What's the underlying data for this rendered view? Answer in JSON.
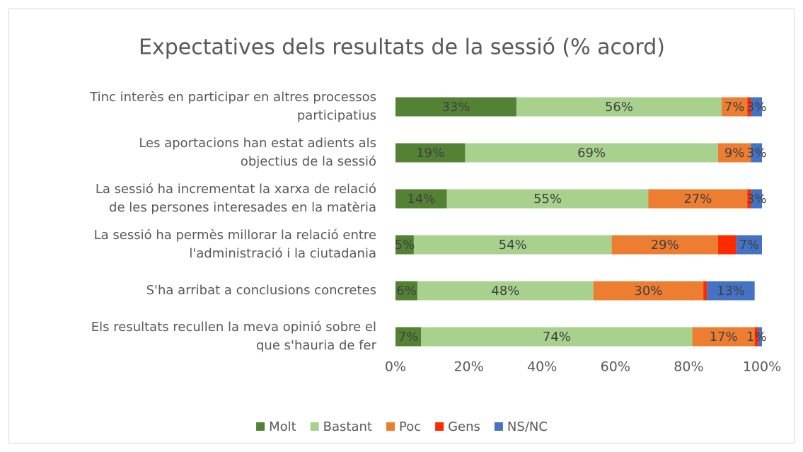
{
  "chart_data": {
    "type": "stacked-bar-horizontal",
    "title": "Expectatives dels resultats de la sessió (% acord)",
    "categories": [
      "Tinc interès en participar en altres processos participatius",
      "Les aportacions han estat adients als objectius de la sessió",
      "La sessió ha incrementat la xarxa de relació de les persones interesades en la matèria",
      "La sessió ha permès millorar la relació entre l'administració i la ciutadania",
      "S'ha arribat a conclusions concretes",
      "Els resultats recullen la meva opinió sobre el que s'hauria de fer"
    ],
    "series": [
      {
        "name": "Molt",
        "color": "#548235",
        "values": [
          33,
          19,
          14,
          5,
          6,
          7
        ],
        "value_labels": [
          "33%",
          "19%",
          "14%",
          "5%",
          "6%",
          "7%"
        ]
      },
      {
        "name": "Bastant",
        "color": "#a9d18e",
        "values": [
          56,
          69,
          55,
          54,
          48,
          74
        ],
        "value_labels": [
          "56%",
          "69%",
          "55%",
          "54%",
          "48%",
          "74%"
        ]
      },
      {
        "name": "Poc",
        "color": "#ed7d31",
        "values": [
          7,
          9,
          27,
          29,
          30,
          17
        ],
        "value_labels": [
          "7%",
          "9%",
          "27%",
          "29%",
          "30%",
          "17%"
        ]
      },
      {
        "name": "Gens",
        "color": "#ff2a00",
        "values": [
          1,
          0,
          1,
          5,
          1,
          1
        ],
        "value_labels": [
          null,
          null,
          null,
          null,
          null,
          "1%"
        ]
      },
      {
        "name": "NS/NC",
        "color": "#4472c4",
        "values": [
          3,
          3,
          3,
          7,
          13,
          1
        ],
        "value_labels": [
          "3%",
          "3%",
          "3%",
          "7%",
          "13%",
          null
        ]
      }
    ],
    "xlim": [
      0,
      100
    ],
    "xticks": [
      {
        "value": 0,
        "label": "0%"
      },
      {
        "value": 20,
        "label": "20%"
      },
      {
        "value": 40,
        "label": "40%"
      },
      {
        "value": 60,
        "label": "60%"
      },
      {
        "value": 80,
        "label": "80%"
      },
      {
        "value": 100,
        "label": "100%"
      }
    ],
    "legend": "bottom"
  }
}
